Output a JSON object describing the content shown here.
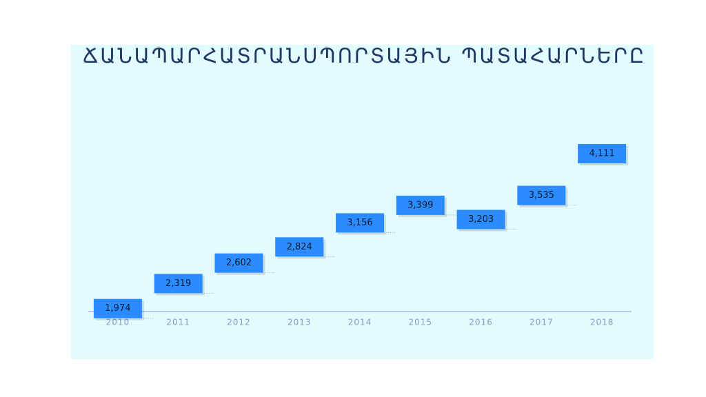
{
  "chart_data": {
    "type": "floating-bar",
    "title": "ՃԱՆԱՊԱՐՀԱՏՐԱՆՍՊՈՐՏԱՅԻՆ ՊԱՏԱՀԱՐՆԵՐԸ",
    "categories": [
      "2010",
      "2011",
      "2012",
      "2013",
      "2014",
      "2015",
      "2016",
      "2017",
      "2018"
    ],
    "values": [
      1974,
      2319,
      2602,
      2824,
      3156,
      3399,
      3203,
      3535,
      4111
    ],
    "value_labels": [
      "1,974",
      "2,319",
      "2,602",
      "2,824",
      "3,156",
      "3,399",
      "3,203",
      "3,535",
      "4,111"
    ],
    "color": "#2a8cff",
    "ylim": [
      1800,
      4900
    ]
  }
}
